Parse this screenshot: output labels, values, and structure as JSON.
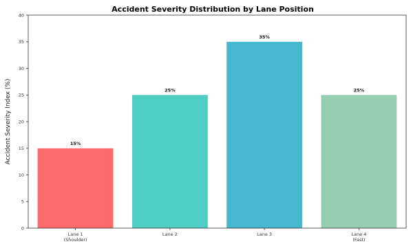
{
  "chart_data": {
    "type": "bar",
    "title": "Accident Severity Distribution by Lane Position",
    "xlabel": "",
    "ylabel": "Accident Severity Index (%)",
    "ylim": [
      0,
      40
    ],
    "yticks": [
      0,
      5,
      10,
      15,
      20,
      25,
      30,
      35,
      40
    ],
    "categories": [
      [
        "Lane 1",
        "(Shoulder)"
      ],
      [
        "Lane 2"
      ],
      [
        "Lane 3"
      ],
      [
        "Lane 4",
        "(Fast)"
      ]
    ],
    "values": [
      15,
      25,
      35,
      25
    ],
    "data_labels": [
      "15%",
      "25%",
      "35%",
      "25%"
    ],
    "colors": [
      "#ff6b6b",
      "#4ecdc4",
      "#45b7d1",
      "#96ceb4"
    ],
    "grid": false,
    "legend": "none"
  }
}
